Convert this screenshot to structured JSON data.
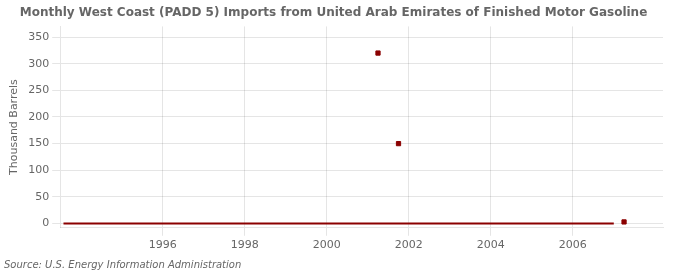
{
  "chart_data": {
    "type": "line",
    "title": "Monthly West Coast (PADD 5) Imports from United Arab Emirates of Finished Motor Gasoline",
    "ylabel": "Thousand Barrels",
    "source": "Source: U.S. Energy Information Administration",
    "xlim": [
      1993.5,
      2008.2
    ],
    "xticks": [
      1996,
      1998,
      2000,
      2002,
      2004,
      2006
    ],
    "ylim": [
      -8,
      370
    ],
    "yticks": [
      0,
      50,
      100,
      150,
      200,
      250,
      300,
      350
    ],
    "grid": true,
    "series": [
      {
        "type": "line",
        "color": "#8b0000",
        "line_style": "solid",
        "marker": "none",
        "x": [
          1993.58,
          2001.0,
          2003.2,
          2007.0
        ],
        "values": [
          0,
          0,
          0,
          0
        ]
      },
      {
        "type": "scatter",
        "color": "#8b0000",
        "marker": "square",
        "x": [
          2001.25,
          2001.75,
          2007.25
        ],
        "values": [
          320,
          150,
          3
        ]
      }
    ]
  }
}
